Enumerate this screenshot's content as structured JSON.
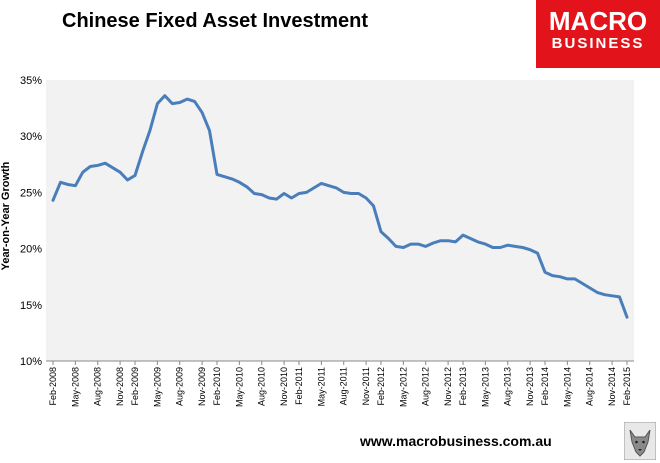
{
  "title": "Chinese Fixed Asset Investment",
  "logo": {
    "line1": "MACRO",
    "line2": "BUSINESS"
  },
  "website": "www.macrobusiness.com.au",
  "colors": {
    "line": "#4a7ebb",
    "plot_bg": "#f2f2f2",
    "logo_bg": "#e3131b"
  },
  "chart_data": {
    "type": "line",
    "title": "Chinese Fixed Asset Investment",
    "xlabel": "",
    "ylabel": "Year-on-Year Growth",
    "ylim": [
      10,
      35
    ],
    "yticks": [
      10,
      15,
      20,
      25,
      30,
      35
    ],
    "ytick_labels": [
      "10%",
      "15%",
      "20%",
      "25%",
      "30%",
      "35%"
    ],
    "grid": false,
    "x": [
      "Feb-2008",
      "Mar-2008",
      "Apr-2008",
      "May-2008",
      "Jun-2008",
      "Jul-2008",
      "Aug-2008",
      "Sep-2008",
      "Oct-2008",
      "Nov-2008",
      "Dec-2008",
      "Feb-2009",
      "Mar-2009",
      "Apr-2009",
      "May-2009",
      "Jun-2009",
      "Jul-2009",
      "Aug-2009",
      "Sep-2009",
      "Oct-2009",
      "Nov-2009",
      "Dec-2009",
      "Feb-2010",
      "Mar-2010",
      "Apr-2010",
      "May-2010",
      "Jun-2010",
      "Jul-2010",
      "Aug-2010",
      "Sep-2010",
      "Oct-2010",
      "Nov-2010",
      "Dec-2010",
      "Feb-2011",
      "Mar-2011",
      "Apr-2011",
      "May-2011",
      "Jun-2011",
      "Jul-2011",
      "Aug-2011",
      "Sep-2011",
      "Oct-2011",
      "Nov-2011",
      "Dec-2011",
      "Feb-2012",
      "Mar-2012",
      "Apr-2012",
      "May-2012",
      "Jun-2012",
      "Jul-2012",
      "Aug-2012",
      "Sep-2012",
      "Oct-2012",
      "Nov-2012",
      "Dec-2012",
      "Feb-2013",
      "Mar-2013",
      "Apr-2013",
      "May-2013",
      "Jun-2013",
      "Jul-2013",
      "Aug-2013",
      "Sep-2013",
      "Oct-2013",
      "Nov-2013",
      "Dec-2013",
      "Feb-2014",
      "Mar-2014",
      "Apr-2014",
      "May-2014",
      "Jun-2014",
      "Jul-2014",
      "Aug-2014",
      "Sep-2014",
      "Oct-2014",
      "Nov-2014",
      "Dec-2014",
      "Feb-2015"
    ],
    "series": [
      {
        "values": [
          24.3,
          25.9,
          25.7,
          25.6,
          26.8,
          27.3,
          27.4,
          27.6,
          27.2,
          26.8,
          26.1,
          26.5,
          28.6,
          30.5,
          32.9,
          33.6,
          32.9,
          33.0,
          33.3,
          33.1,
          32.1,
          30.5,
          26.6,
          26.4,
          26.2,
          25.9,
          25.5,
          24.9,
          24.8,
          24.5,
          24.4,
          24.9,
          24.5,
          24.9,
          25.0,
          25.4,
          25.8,
          25.6,
          25.4,
          25.0,
          24.9,
          24.9,
          24.5,
          23.8,
          21.5,
          20.9,
          20.2,
          20.1,
          20.4,
          20.4,
          20.2,
          20.5,
          20.7,
          20.7,
          20.6,
          21.2,
          20.9,
          20.6,
          20.4,
          20.1,
          20.1,
          20.3,
          20.2,
          20.1,
          19.9,
          19.6,
          17.9,
          17.6,
          17.5,
          17.3,
          17.3,
          16.9,
          16.5,
          16.1,
          15.9,
          15.8,
          15.7,
          13.9
        ]
      }
    ],
    "xtick_labels": [
      "Feb-2008",
      "May-2008",
      "Aug-2008",
      "Nov-2008",
      "Feb-2009",
      "May-2009",
      "Aug-2009",
      "Nov-2009",
      "Feb-2010",
      "May-2010",
      "Aug-2010",
      "Nov-2010",
      "Feb-2011",
      "May-2011",
      "Aug-2011",
      "Nov-2011",
      "Feb-2012",
      "May-2012",
      "Aug-2012",
      "Nov-2012",
      "Feb-2013",
      "May-2013",
      "Aug-2013",
      "Nov-2013",
      "Feb-2014",
      "May-2014",
      "Aug-2014",
      "Nov-2014",
      "Feb-2015"
    ]
  }
}
